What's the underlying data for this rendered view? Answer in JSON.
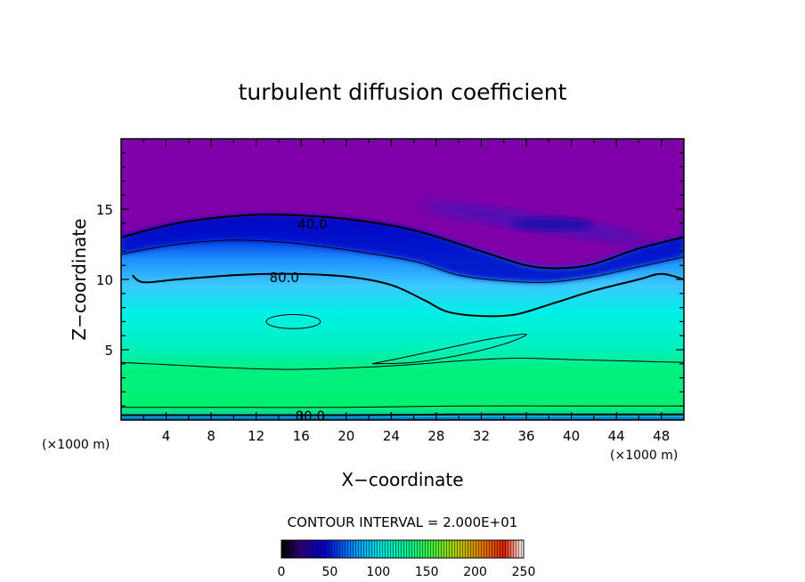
{
  "chart_data": {
    "type": "heatmap",
    "title": "turbulent diffusion coefficient",
    "xlabel": "X−coordinate",
    "ylabel": "Z−coordinate",
    "x_unit_label": "(×1000 m)",
    "y_unit_label": "(×1000 m)",
    "xlim": [
      0,
      50
    ],
    "ylim": [
      0,
      20
    ],
    "x_ticks": [
      4,
      8,
      12,
      16,
      20,
      24,
      28,
      32,
      36,
      40,
      44,
      48
    ],
    "y_ticks": [
      5,
      10,
      15
    ],
    "contour_interval_label": "CONTOUR INTERVAL =  2.000E+01",
    "contour_interval": 20,
    "contour_labels": [
      {
        "text": "40.0",
        "x": 17.0,
        "y": 14.0
      },
      {
        "text": "80.0",
        "x": 14.5,
        "y": 10.2
      },
      {
        "text": "80.0",
        "x": 16.8,
        "y": 0.35
      }
    ],
    "colorbar": {
      "min": 0,
      "max": 250,
      "ticks": [
        0,
        50,
        100,
        150,
        200,
        250
      ]
    },
    "colors": {
      "top": "#8000aa",
      "deep": "#0000b4",
      "mid": "#30a8ff",
      "cyan": "#00f0e0",
      "green": "#00f070"
    },
    "contours": [
      {
        "level": 20,
        "bold": true,
        "points": [
          [
            0,
            13.0
          ],
          [
            5,
            14.0
          ],
          [
            10,
            14.5
          ],
          [
            14,
            14.6
          ],
          [
            20,
            14.3
          ],
          [
            26,
            13.5
          ],
          [
            32,
            12.0
          ],
          [
            36,
            11.0
          ],
          [
            39,
            10.8
          ],
          [
            42,
            11.1
          ],
          [
            46,
            12.2
          ],
          [
            50,
            13.0
          ]
        ]
      },
      {
        "level": 40,
        "bold": false,
        "points": [
          [
            0,
            11.8
          ],
          [
            5,
            12.5
          ],
          [
            10,
            12.8
          ],
          [
            15,
            12.6
          ],
          [
            20,
            12.1
          ],
          [
            26,
            11.3
          ],
          [
            30,
            10.3
          ],
          [
            34,
            9.9
          ],
          [
            38,
            9.8
          ],
          [
            42,
            10.2
          ],
          [
            46,
            10.9
          ],
          [
            50,
            11.6
          ]
        ]
      },
      {
        "level": 80,
        "bold": true,
        "points": [
          [
            1,
            10.3
          ],
          [
            2,
            9.8
          ],
          [
            5,
            10.0
          ],
          [
            10,
            10.3
          ],
          [
            15,
            10.4
          ],
          [
            20,
            10.2
          ],
          [
            24,
            9.6
          ],
          [
            27,
            8.5
          ],
          [
            29,
            7.7
          ],
          [
            32,
            7.4
          ],
          [
            35,
            7.5
          ],
          [
            38,
            8.2
          ],
          [
            42,
            9.2
          ],
          [
            46,
            10.0
          ],
          [
            48,
            10.4
          ],
          [
            50,
            10.0
          ]
        ]
      },
      {
        "level": 100,
        "bold": false,
        "points": [
          [
            0,
            4.1
          ],
          [
            5,
            3.9
          ],
          [
            10,
            3.7
          ],
          [
            15,
            3.6
          ],
          [
            20,
            3.7
          ],
          [
            25,
            3.9
          ],
          [
            30,
            4.2
          ],
          [
            35,
            4.4
          ],
          [
            40,
            4.3
          ],
          [
            45,
            4.2
          ],
          [
            50,
            4.1
          ]
        ]
      },
      {
        "level": 80,
        "bold": false,
        "points": [
          [
            0,
            0.9
          ],
          [
            10,
            0.9
          ],
          [
            20,
            0.9
          ],
          [
            30,
            1.0
          ],
          [
            40,
            1.0
          ],
          [
            50,
            1.0
          ]
        ]
      },
      {
        "level": 40,
        "bold": true,
        "points": [
          [
            0,
            0.35
          ],
          [
            10,
            0.35
          ],
          [
            20,
            0.35
          ],
          [
            30,
            0.4
          ],
          [
            40,
            0.4
          ],
          [
            50,
            0.4
          ]
        ]
      }
    ],
    "closed_contours": [
      {
        "level": 120,
        "cx": 15.3,
        "cy": 7.0,
        "rx": 2.4,
        "ry": 0.5,
        "rotate": 0
      },
      {
        "level": 120,
        "points": [
          [
            22.3,
            4.0
          ],
          [
            26,
            4.6
          ],
          [
            30,
            5.3
          ],
          [
            33,
            5.8
          ],
          [
            36,
            6.1
          ],
          [
            34,
            5.4
          ],
          [
            30,
            4.6
          ],
          [
            26,
            4.1
          ],
          [
            22.3,
            4.0
          ]
        ]
      }
    ]
  }
}
